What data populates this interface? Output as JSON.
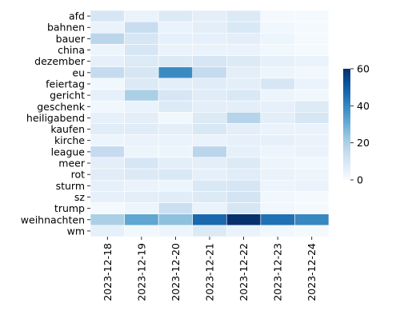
{
  "chart_data": {
    "type": "heatmap",
    "title": "",
    "xlabel": "",
    "ylabel": "",
    "x_categories": [
      "2023-12-18",
      "2023-12-19",
      "2023-12-20",
      "2023-12-21",
      "2023-12-22",
      "2023-12-23",
      "2023-12-24"
    ],
    "y_categories": [
      "afd",
      "bahnen",
      "bauer",
      "china",
      "dezember",
      "eu",
      "feiertag",
      "gericht",
      "geschenk",
      "heiligabend",
      "kaufen",
      "kirche",
      "league",
      "meer",
      "rot",
      "sturm",
      "sz",
      "trump",
      "weihnachten",
      "wm"
    ],
    "values": [
      [
        10,
        4,
        8,
        6,
        8,
        1,
        1
      ],
      [
        4,
        14,
        4,
        6,
        9,
        2,
        1
      ],
      [
        17,
        10,
        5,
        5,
        6,
        3,
        1
      ],
      [
        3,
        10,
        4,
        4,
        4,
        2,
        1
      ],
      [
        5,
        8,
        8,
        10,
        8,
        5,
        4
      ],
      [
        15,
        10,
        39,
        15,
        6,
        3,
        2
      ],
      [
        2,
        8,
        6,
        7,
        6,
        10,
        4
      ],
      [
        5,
        20,
        10,
        7,
        9,
        3,
        2
      ],
      [
        2,
        4,
        8,
        6,
        6,
        5,
        8
      ],
      [
        5,
        6,
        2,
        8,
        18,
        6,
        10
      ],
      [
        7,
        7,
        6,
        9,
        6,
        4,
        4
      ],
      [
        3,
        4,
        4,
        4,
        5,
        5,
        4
      ],
      [
        15,
        3,
        3,
        17,
        5,
        3,
        4
      ],
      [
        6,
        10,
        6,
        6,
        8,
        3,
        2
      ],
      [
        7,
        8,
        9,
        5,
        7,
        4,
        3
      ],
      [
        5,
        4,
        3,
        9,
        10,
        3,
        4
      ],
      [
        5,
        6,
        7,
        8,
        11,
        2,
        1
      ],
      [
        1,
        3,
        13,
        4,
        10,
        2,
        1
      ],
      [
        20,
        32,
        25,
        47,
        60,
        45,
        40
      ],
      [
        5,
        2,
        3,
        8,
        4,
        2,
        1
      ]
    ],
    "colorbar": {
      "min": 0,
      "max": 60,
      "ticks": [
        0,
        20,
        40,
        60
      ]
    },
    "colormap": "Blues",
    "colors": {
      "low": "#f7fbff",
      "high": "#08306b",
      "cell_border": "#ffffff"
    },
    "grid": false,
    "legend": "colorbar-right"
  }
}
